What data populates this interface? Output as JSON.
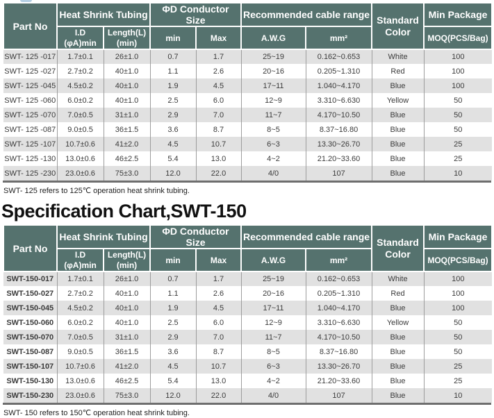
{
  "colors": {
    "header_bg": "#55726e",
    "header_text": "#ffffff",
    "row_alt_bg": "#e1e1e1",
    "row_bg": "#ffffff",
    "cell_text": "#3a3a3a",
    "column_divider": "#9c9c9c",
    "table_bottom_bar": "#6e6e6e",
    "top_fragment": "#b5cfe4"
  },
  "header_labels": {
    "part_no": "Part No",
    "heat_shrink_tubing": "Heat Shrink Tubing",
    "id_line1": "I.D",
    "id_line2": "(φA)min",
    "length_line1": "Length(L)",
    "length_line2": "(min)",
    "conductor_size": "ΦD Conductor Size",
    "min": "min",
    "max": "Max",
    "cable_range": "Recommended cable range",
    "awg": "A.W.G",
    "mm2": "mm²",
    "standard_line1": "Standard",
    "standard_line2": "Color",
    "min_package": "Min Package",
    "moq": "MOQ(PCS/Bag)"
  },
  "table_125": {
    "rows": [
      [
        "SWT- 125 -017",
        "1.7±0.1",
        "26±1.0",
        "0.7",
        "1.7",
        "25~19",
        "0.162~0.653",
        "White",
        "100"
      ],
      [
        "SWT- 125 -027",
        "2.7±0.2",
        "40±1.0",
        "1.1",
        "2.6",
        "20~16",
        "0.205~1.310",
        "Red",
        "100"
      ],
      [
        "SWT- 125 -045",
        "4.5±0.2",
        "40±1.0",
        "1.9",
        "4.5",
        "17~11",
        "1.040~4.170",
        "Blue",
        "100"
      ],
      [
        "SWT- 125 -060",
        "6.0±0.2",
        "40±1.0",
        "2.5",
        "6.0",
        "12~9",
        "3.310~6.630",
        "Yellow",
        "50"
      ],
      [
        "SWT- 125 -070",
        "7.0±0.5",
        "31±1.0",
        "2.9",
        "7.0",
        "11~7",
        "4.170~10.50",
        "Blue",
        "50"
      ],
      [
        "SWT- 125 -087",
        "9.0±0.5",
        "36±1.5",
        "3.6",
        "8.7",
        "8~5",
        "8.37~16.80",
        "Blue",
        "50"
      ],
      [
        "SWT- 125 -107",
        "10.7±0.6",
        "41±2.0",
        "4.5",
        "10.7",
        "6~3",
        "13.30~26.70",
        "Blue",
        "25"
      ],
      [
        "SWT- 125 -130",
        "13.0±0.6",
        "46±2.5",
        "5.4",
        "13.0",
        "4~2",
        "21.20~33.60",
        "Blue",
        "25"
      ],
      [
        "SWT- 125 -230",
        "23.0±0.6",
        "75±3.0",
        "12.0",
        "22.0",
        "4/0",
        "107",
        "Blue",
        "10"
      ]
    ],
    "footnote": "SWT- 125 refers to 125℃ operation heat shrink tubing."
  },
  "heading_150": "Specification Chart,SWT-150",
  "table_150": {
    "rows": [
      [
        "SWT-150-017",
        "1.7±0.1",
        "26±1.0",
        "0.7",
        "1.7",
        "25~19",
        "0.162~0.653",
        "White",
        "100"
      ],
      [
        "SWT-150-027",
        "2.7±0.2",
        "40±1.0",
        "1.1",
        "2.6",
        "20~16",
        "0.205~1.310",
        "Red",
        "100"
      ],
      [
        "SWT-150-045",
        "4.5±0.2",
        "40±1.0",
        "1.9",
        "4.5",
        "17~11",
        "1.040~4.170",
        "Blue",
        "100"
      ],
      [
        "SWT-150-060",
        "6.0±0.2",
        "40±1.0",
        "2.5",
        "6.0",
        "12~9",
        "3.310~6.630",
        "Yellow",
        "50"
      ],
      [
        "SWT-150-070",
        "7.0±0.5",
        "31±1.0",
        "2.9",
        "7.0",
        "11~7",
        "4.170~10.50",
        "Blue",
        "50"
      ],
      [
        "SWT-150-087",
        "9.0±0.5",
        "36±1.5",
        "3.6",
        "8.7",
        "8~5",
        "8.37~16.80",
        "Blue",
        "50"
      ],
      [
        "SWT-150-107",
        "10.7±0.6",
        "41±2.0",
        "4.5",
        "10.7",
        "6~3",
        "13.30~26.70",
        "Blue",
        "25"
      ],
      [
        "SWT-150-130",
        "13.0±0.6",
        "46±2.5",
        "5.4",
        "13.0",
        "4~2",
        "21.20~33.60",
        "Blue",
        "25"
      ],
      [
        "SWT-150-230",
        "23.0±0.6",
        "75±3.0",
        "12.0",
        "22.0",
        "4/0",
        "107",
        "Blue",
        "10"
      ]
    ],
    "footnote": "SWT- 150 refers to 150℃ operation heat shrink tubing."
  }
}
